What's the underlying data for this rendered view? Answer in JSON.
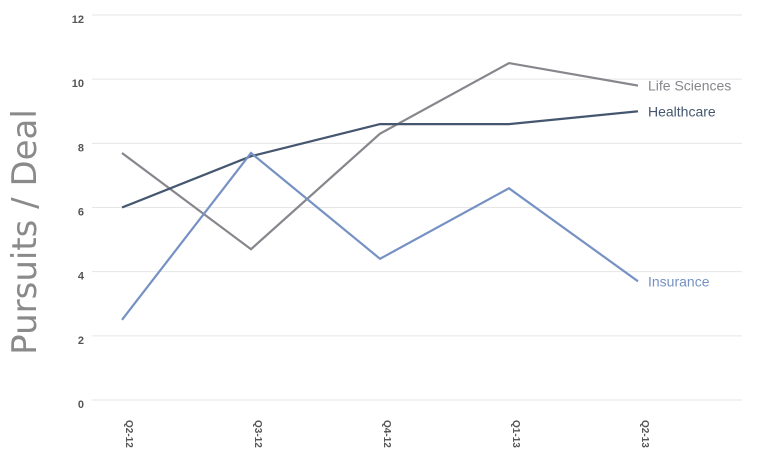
{
  "chart_data": {
    "type": "line",
    "title": "",
    "xlabel": "",
    "ylabel": "Pursuits / Deal",
    "categories": [
      "Q2-12",
      "Q3-12",
      "Q4-12",
      "Q1-13",
      "Q2-13"
    ],
    "ylim": [
      0,
      12
    ],
    "yticks": [
      0,
      2,
      4,
      6,
      8,
      10,
      12
    ],
    "grid": true,
    "legend": "inline-right",
    "series": [
      {
        "name": "Life Sciences",
        "values": [
          7.7,
          4.7,
          8.3,
          10.5,
          9.8
        ],
        "color": "#86868c"
      },
      {
        "name": "Healthcare",
        "values": [
          6.0,
          7.6,
          8.6,
          8.6,
          9.0
        ],
        "color": "#45566f"
      },
      {
        "name": "Insurance",
        "values": [
          2.5,
          7.7,
          4.4,
          6.6,
          3.7
        ],
        "color": "#7691c4"
      }
    ]
  }
}
